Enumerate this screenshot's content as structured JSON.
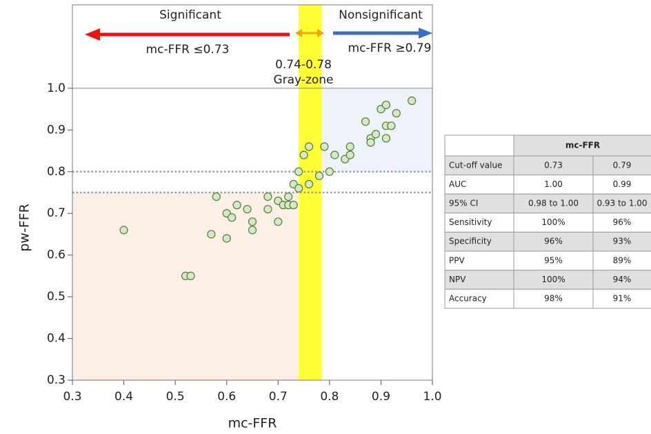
{
  "chart_data": {
    "type": "scatter",
    "xlabel": "mc-FFR",
    "ylabel": "pw-FFR",
    "xlim": [
      0.3,
      1.0
    ],
    "ylim": [
      0.3,
      1.2
    ],
    "xticks": [
      0.3,
      0.4,
      0.5,
      0.6,
      0.7,
      0.8,
      0.9,
      {
        "value": 1,
        "label": "1.0"
      }
    ],
    "yticks": [
      0.3,
      0.4,
      0.5,
      0.6,
      0.7,
      0.8,
      0.9,
      {
        "value": 1,
        "label": "1.0"
      }
    ],
    "x": [
      0.4,
      0.52,
      0.53,
      0.57,
      0.58,
      0.6,
      0.6,
      0.61,
      0.62,
      0.64,
      0.65,
      0.65,
      0.68,
      0.68,
      0.7,
      0.7,
      0.71,
      0.72,
      0.72,
      0.73,
      0.73,
      0.74,
      0.74,
      0.75,
      0.76,
      0.76,
      0.78,
      0.79,
      0.8,
      0.81,
      0.83,
      0.84,
      0.84,
      0.87,
      0.88,
      0.88,
      0.89,
      0.9,
      0.91,
      0.91,
      0.91,
      0.92,
      0.93,
      0.96
    ],
    "values": [
      0.66,
      0.55,
      0.55,
      0.65,
      0.74,
      0.7,
      0.64,
      0.69,
      0.72,
      0.71,
      0.68,
      0.66,
      0.74,
      0.71,
      0.73,
      0.68,
      0.72,
      0.74,
      0.72,
      0.72,
      0.77,
      0.8,
      0.76,
      0.84,
      0.86,
      0.77,
      0.79,
      0.86,
      0.8,
      0.84,
      0.83,
      0.84,
      0.86,
      0.92,
      0.88,
      0.87,
      0.89,
      0.95,
      0.96,
      0.91,
      0.88,
      0.91,
      0.94,
      0.97
    ],
    "color": "#d6e9c6",
    "regions": [
      {
        "x": [
          0.3,
          0.74
        ],
        "y": [
          0.3,
          0.75
        ],
        "color": "#fbefe6"
      },
      {
        "x": [
          0.785,
          1.0
        ],
        "y": [
          0.8,
          1.0
        ],
        "color": "#eef3f9"
      },
      {
        "x": [
          0.74,
          0.785
        ],
        "y": [
          0.3,
          1.2
        ],
        "color": "#ffff33"
      }
    ],
    "dotted_lines": [
      0.75,
      0.8
    ],
    "reference_line": 1.0,
    "annotations": [
      "Significant",
      "mc-FFR ≤0.73",
      "Nonsignificant",
      "mc-FFR ≥0.79",
      "0.74-0.78",
      "Gray-zone"
    ]
  },
  "table": {
    "header": [
      "",
      "mc-FFR"
    ],
    "rows": [
      [
        "Cut-off value",
        "0.73",
        "0.79"
      ],
      [
        "AUC",
        "1.00",
        "0.99"
      ],
      [
        "95% CI",
        "0.98 to 1.00",
        "0.93 to 1.00"
      ],
      [
        "Sensitivity",
        "100%",
        "96%"
      ],
      [
        "Specificity",
        "96%",
        "93%"
      ],
      [
        "PPV",
        "95%",
        "89%"
      ],
      [
        "NPV",
        "100%",
        "94%"
      ],
      [
        "Accuracy",
        "98%",
        "91%"
      ]
    ]
  }
}
